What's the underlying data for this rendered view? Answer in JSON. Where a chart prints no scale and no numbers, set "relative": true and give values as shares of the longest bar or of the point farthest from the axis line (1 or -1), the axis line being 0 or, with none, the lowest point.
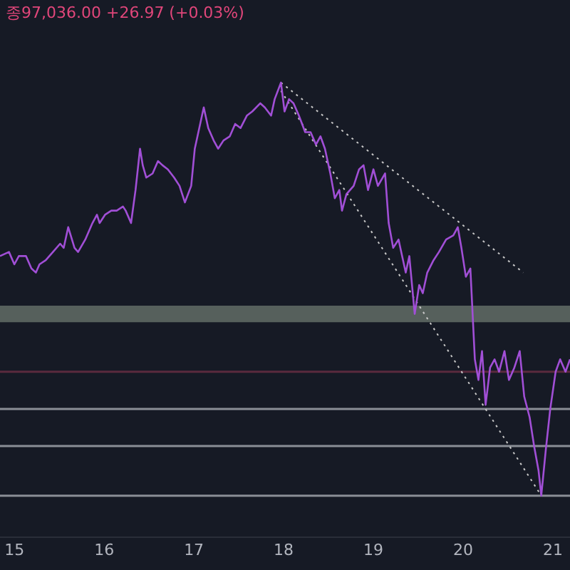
{
  "chart_data": {
    "type": "line",
    "relative": true,
    "annotations": [
      "종97,036.00 +26.97 (+0.03%)"
    ],
    "xlim": [
      14.84,
      21.19
    ],
    "xticks": [
      15,
      16,
      17,
      18,
      19,
      20,
      21
    ],
    "grid": false,
    "legend": false,
    "marker": "none",
    "series": [
      {
        "color": "#a14fd6",
        "line_style": "solid",
        "x": [
          14.84,
          14.94,
          15.0,
          15.05,
          15.13,
          15.19,
          15.24,
          15.28,
          15.35,
          15.43,
          15.51,
          15.55,
          15.6,
          15.67,
          15.71,
          15.79,
          15.87,
          15.92,
          15.95,
          16.01,
          16.08,
          16.14,
          16.21,
          16.24,
          16.3,
          16.35,
          16.4,
          16.43,
          16.47,
          16.54,
          16.6,
          16.65,
          16.71,
          16.78,
          16.84,
          16.9,
          16.97,
          17.01,
          17.06,
          17.11,
          17.16,
          17.22,
          17.27,
          17.33,
          17.4,
          17.46,
          17.52,
          17.59,
          17.65,
          17.74,
          17.79,
          17.86,
          17.9,
          17.97,
          18.01,
          18.06,
          18.11,
          18.17,
          18.24,
          18.3,
          18.36,
          18.41,
          18.46,
          18.52,
          18.57,
          18.62,
          18.65,
          18.7,
          18.78,
          18.84,
          18.89,
          18.94,
          19.0,
          19.05,
          19.13,
          19.17,
          19.22,
          19.28,
          19.32,
          19.36,
          19.4,
          19.46,
          19.51,
          19.55,
          19.6,
          19.67,
          19.73,
          19.81,
          19.89,
          19.94,
          19.98,
          20.03,
          20.08,
          20.13,
          20.17,
          20.21,
          20.25,
          20.3,
          20.35,
          20.4,
          20.46,
          20.51,
          20.57,
          20.63,
          20.68,
          20.74,
          20.79,
          20.84,
          20.87,
          20.92,
          20.97,
          21.03,
          21.08,
          21.14,
          21.19
        ],
        "values": [
          0.58,
          0.59,
          0.56,
          0.58,
          0.58,
          0.55,
          0.54,
          0.56,
          0.57,
          0.59,
          0.61,
          0.6,
          0.65,
          0.6,
          0.59,
          0.62,
          0.66,
          0.68,
          0.66,
          0.68,
          0.69,
          0.69,
          0.7,
          0.69,
          0.66,
          0.74,
          0.84,
          0.8,
          0.77,
          0.78,
          0.81,
          0.8,
          0.79,
          0.77,
          0.75,
          0.71,
          0.75,
          0.84,
          0.89,
          0.94,
          0.89,
          0.86,
          0.84,
          0.86,
          0.87,
          0.9,
          0.89,
          0.92,
          0.93,
          0.95,
          0.94,
          0.92,
          0.96,
          1,
          0.93,
          0.96,
          0.95,
          0.92,
          0.88,
          0.88,
          0.85,
          0.87,
          0.84,
          0.78,
          0.72,
          0.74,
          0.69,
          0.73,
          0.75,
          0.79,
          0.8,
          0.74,
          0.79,
          0.75,
          0.78,
          0.66,
          0.6,
          0.62,
          0.58,
          0.54,
          0.58,
          0.44,
          0.51,
          0.49,
          0.54,
          0.57,
          0.59,
          0.62,
          0.63,
          0.65,
          0.6,
          0.53,
          0.55,
          0.33,
          0.28,
          0.35,
          0.22,
          0.31,
          0.33,
          0.3,
          0.35,
          0.28,
          0.31,
          0.35,
          0.24,
          0.19,
          0.12,
          0.06,
          0,
          0.11,
          0.21,
          0.3,
          0.33,
          0.3,
          0.33
        ]
      },
      {
        "type": "line",
        "color": "#c8c8c8",
        "line_style": "dotted",
        "x": [
          17.97,
          20.67
        ],
        "values": [
          1,
          0.54
        ]
      },
      {
        "type": "line",
        "color": "#c8c8c8",
        "line_style": "dotted",
        "x": [
          17.97,
          20.87
        ],
        "values": [
          0.98,
          0
        ]
      }
    ],
    "ref_lines": [
      {
        "axis": "y",
        "value": 0.3,
        "color": "#5a2a3e"
      },
      {
        "axis": "y",
        "value": 0.21,
        "color": "#8a8e96"
      },
      {
        "axis": "y",
        "value": 0.12,
        "color": "#8a8e96"
      },
      {
        "axis": "y",
        "value": 0,
        "color": "#8a8e96"
      }
    ],
    "bands": [
      {
        "axis": "y",
        "from": 0.42,
        "to": 0.46,
        "color": "#56605c"
      }
    ]
  }
}
